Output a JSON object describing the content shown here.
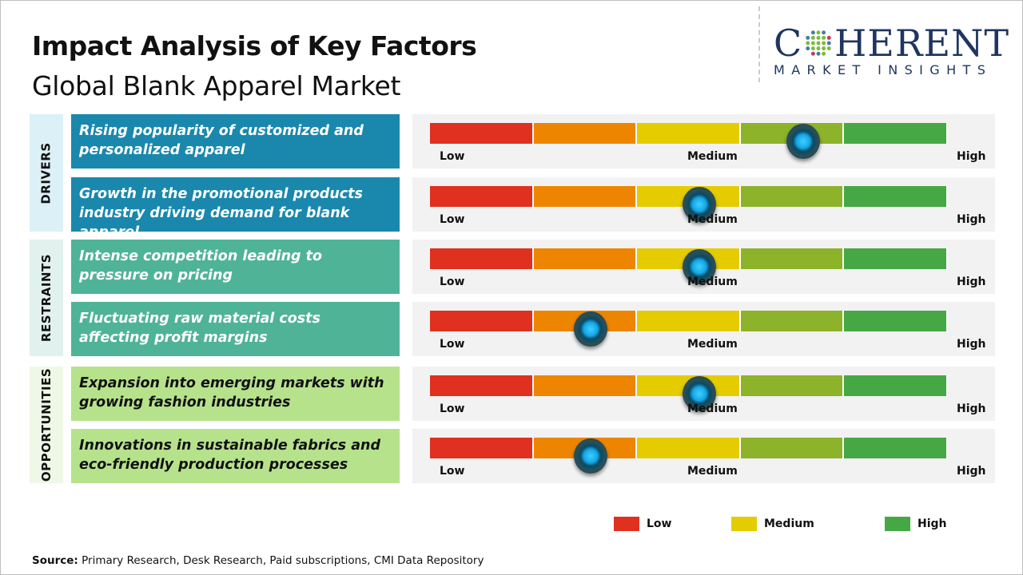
{
  "header": {
    "title": "Impact Analysis of Key Factors",
    "subtitle": "Global Blank Apparel Market"
  },
  "logo": {
    "line1_pre": "C",
    "line1_post": "HERENT",
    "line2": "MARKET INSIGHTS"
  },
  "scale_labels": {
    "low": "Low",
    "medium": "Medium",
    "high": "High"
  },
  "scale_colors": [
    "#e03020",
    "#ee8500",
    "#e5cc00",
    "#8db32a",
    "#45a845"
  ],
  "categories": [
    {
      "label": "DRIVERS",
      "bg": "#dcf0f8",
      "box_color": "#1a88ad",
      "text_color": "#ffffff"
    },
    {
      "label": "RESTRAINTS",
      "bg": "#e1f1ee",
      "box_color": "#4fb398",
      "text_color": "#ffffff"
    },
    {
      "label": "OPPORTUNITIES",
      "bg": "#eff8e6",
      "box_color": "#b6e28c",
      "text_color": "#111111"
    }
  ],
  "factors": [
    {
      "category": "DRIVERS",
      "text": "Rising popularity of customized and personalized apparel",
      "impact": 0.72
    },
    {
      "category": "DRIVERS",
      "text": "Growth in the promotional products industry driving demand for blank apparel",
      "impact": 0.52
    },
    {
      "category": "RESTRAINTS",
      "text": "Intense competition leading to pressure on pricing",
      "impact": 0.52
    },
    {
      "category": "RESTRAINTS",
      "text": "Fluctuating raw material costs affecting profit margins",
      "impact": 0.31
    },
    {
      "category": "OPPORTUNITIES",
      "text": "Expansion into emerging markets with growing fashion industries",
      "impact": 0.52
    },
    {
      "category": "OPPORTUNITIES",
      "text": "Innovations in sustainable fabrics and eco-friendly production processes",
      "impact": 0.31
    }
  ],
  "legend": [
    {
      "label": "Low",
      "color": "#e03020"
    },
    {
      "label": "Medium",
      "color": "#e5cc00"
    },
    {
      "label": "High",
      "color": "#45a845"
    }
  ],
  "source": {
    "label": "Source:",
    "text": " Primary Research, Desk Research, Paid subscriptions, CMI Data Repository"
  }
}
